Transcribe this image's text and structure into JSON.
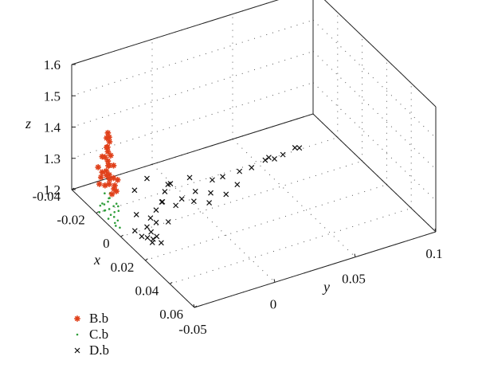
{
  "chart_data": {
    "type": "scatter",
    "projection": "3d",
    "xlabel": "x",
    "ylabel": "y",
    "zlabel": "z",
    "xlim": [
      -0.04,
      0.06
    ],
    "ylim": [
      -0.05,
      0.1
    ],
    "zlim": [
      1.2,
      1.6
    ],
    "x_ticks": [
      "-0.04",
      "-0.02",
      "0",
      "0.02",
      "0.04",
      "0.06"
    ],
    "y_ticks": [
      "-0.05",
      "0",
      "0.05",
      "0.1"
    ],
    "z_ticks": [
      "1.2",
      "1.3",
      "1.4",
      "1.5",
      "1.6"
    ],
    "grid": true,
    "legend_position": "bottom-left",
    "series": [
      {
        "name": "B.b",
        "marker": "asterisk",
        "color": "#e0401a",
        "points": [
          [
            -0.022,
            -0.043,
            1.27
          ],
          [
            -0.02,
            -0.042,
            1.28
          ],
          [
            -0.021,
            -0.041,
            1.29
          ],
          [
            -0.022,
            -0.042,
            1.3
          ],
          [
            -0.02,
            -0.042,
            1.31
          ],
          [
            -0.021,
            -0.043,
            1.32
          ],
          [
            -0.022,
            -0.041,
            1.33
          ],
          [
            -0.02,
            -0.042,
            1.34
          ],
          [
            -0.021,
            -0.042,
            1.35
          ],
          [
            -0.022,
            -0.043,
            1.36
          ],
          [
            -0.02,
            -0.041,
            1.37
          ],
          [
            -0.021,
            -0.042,
            1.38
          ],
          [
            -0.022,
            -0.042,
            1.39
          ],
          [
            -0.02,
            -0.043,
            1.4
          ],
          [
            -0.021,
            -0.041,
            1.41
          ],
          [
            -0.022,
            -0.042,
            1.42
          ],
          [
            -0.02,
            -0.042,
            1.43
          ],
          [
            -0.021,
            -0.042,
            1.44
          ],
          [
            -0.019,
            -0.04,
            1.3
          ],
          [
            -0.023,
            -0.044,
            1.31
          ],
          [
            -0.019,
            -0.04,
            1.34
          ],
          [
            -0.023,
            -0.044,
            1.36
          ],
          [
            -0.018,
            -0.04,
            1.28
          ],
          [
            -0.024,
            -0.044,
            1.29
          ],
          [
            -0.018,
            -0.039,
            1.26
          ],
          [
            -0.024,
            -0.045,
            1.27
          ],
          [
            -0.017,
            -0.039,
            1.3
          ],
          [
            -0.025,
            -0.045,
            1.32
          ],
          [
            -0.019,
            -0.041,
            1.25
          ],
          [
            -0.02,
            -0.039,
            1.26
          ]
        ]
      },
      {
        "name": "C.b",
        "marker": "dot",
        "color": "#2e9e3a",
        "points": [
          [
            -0.02,
            -0.045,
            1.22
          ],
          [
            -0.018,
            -0.046,
            1.21
          ],
          [
            -0.016,
            -0.044,
            1.2
          ],
          [
            -0.014,
            -0.047,
            1.2
          ],
          [
            -0.012,
            -0.045,
            1.21
          ],
          [
            -0.01,
            -0.046,
            1.2
          ],
          [
            -0.015,
            -0.043,
            1.23
          ],
          [
            -0.017,
            -0.045,
            1.24
          ],
          [
            -0.013,
            -0.044,
            1.22
          ],
          [
            -0.011,
            -0.043,
            1.23
          ],
          [
            -0.019,
            -0.047,
            1.23
          ],
          [
            -0.021,
            -0.044,
            1.25
          ],
          [
            -0.009,
            -0.045,
            1.21
          ],
          [
            -0.008,
            -0.047,
            1.2
          ],
          [
            -0.016,
            -0.048,
            1.22
          ],
          [
            -0.014,
            -0.042,
            1.24
          ],
          [
            -0.022,
            -0.046,
            1.21
          ],
          [
            -0.012,
            -0.048,
            1.24
          ],
          [
            -0.018,
            -0.043,
            1.26
          ],
          [
            -0.01,
            -0.044,
            1.25
          ],
          [
            -0.006,
            -0.046,
            1.2
          ],
          [
            -0.02,
            -0.048,
            1.2
          ],
          [
            -0.015,
            -0.046,
            1.26
          ],
          [
            -0.013,
            -0.047,
            1.27
          ]
        ]
      },
      {
        "name": "D.b",
        "marker": "x",
        "color": "#111111",
        "points": [
          [
            0.004,
            -0.04,
            1.2
          ],
          [
            0.006,
            -0.038,
            1.2
          ],
          [
            0.008,
            -0.036,
            1.2
          ],
          [
            0.005,
            -0.035,
            1.21
          ],
          [
            0.007,
            -0.033,
            1.2
          ],
          [
            0.003,
            -0.036,
            1.22
          ],
          [
            -0.002,
            -0.03,
            1.22
          ],
          [
            0.0,
            -0.028,
            1.21
          ],
          [
            -0.004,
            -0.025,
            1.23
          ],
          [
            0.002,
            -0.022,
            1.21
          ],
          [
            -0.006,
            -0.02,
            1.24
          ],
          [
            -0.008,
            -0.018,
            1.23
          ],
          [
            -0.01,
            -0.015,
            1.25
          ],
          [
            -0.005,
            -0.012,
            1.22
          ],
          [
            -0.012,
            -0.01,
            1.26
          ],
          [
            -0.008,
            -0.006,
            1.22
          ],
          [
            -0.006,
            0.0,
            1.21
          ],
          [
            -0.01,
            0.004,
            1.22
          ],
          [
            -0.004,
            0.008,
            1.2
          ],
          [
            -0.008,
            0.012,
            1.21
          ],
          [
            -0.012,
            0.016,
            1.23
          ],
          [
            -0.006,
            0.02,
            1.2
          ],
          [
            -0.014,
            0.024,
            1.22
          ],
          [
            -0.01,
            0.03,
            1.2
          ],
          [
            -0.016,
            0.036,
            1.21
          ],
          [
            -0.018,
            0.045,
            1.2
          ],
          [
            -0.02,
            0.055,
            1.2
          ],
          [
            -0.021,
            0.058,
            1.2
          ],
          [
            -0.019,
            0.06,
            1.2
          ],
          [
            -0.02,
            0.066,
            1.2
          ],
          [
            -0.022,
            0.075,
            1.2
          ],
          [
            -0.021,
            0.077,
            1.2
          ],
          [
            -0.016,
            0.005,
            1.24
          ],
          [
            -0.015,
            -0.03,
            1.26
          ],
          [
            -0.018,
            -0.02,
            1.27
          ],
          [
            -0.014,
            -0.01,
            1.25
          ],
          [
            0.01,
            -0.038,
            1.2
          ],
          [
            0.012,
            -0.034,
            1.2
          ],
          [
            0.001,
            -0.042,
            1.21
          ],
          [
            -0.003,
            -0.038,
            1.24
          ]
        ]
      }
    ]
  }
}
